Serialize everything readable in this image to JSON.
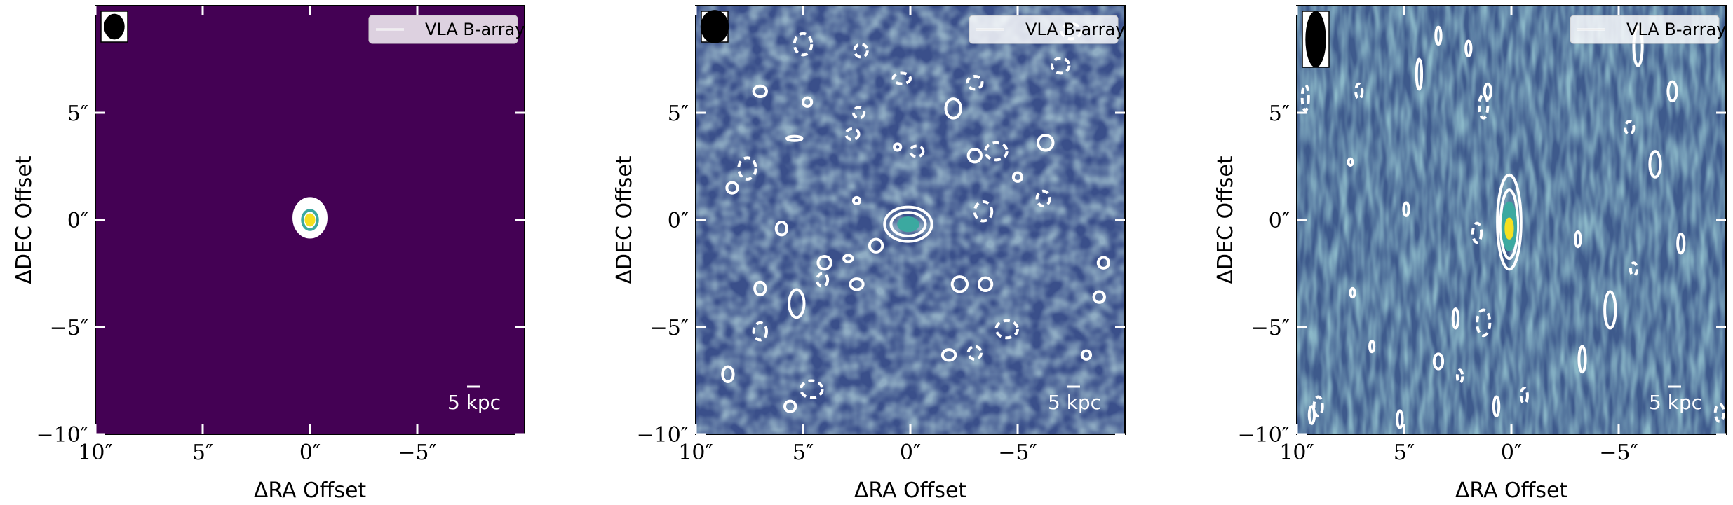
{
  "chart_data": [
    {
      "type": "heatmap",
      "panel": "left",
      "xlabel": "ΔRA Offset",
      "ylabel": "ΔDEC Offset",
      "xlim": [
        10,
        -10
      ],
      "ylim": [
        -10,
        10
      ],
      "x_ticks": [
        {
          "value": 10,
          "label": "10″"
        },
        {
          "value": 5,
          "label": "5″"
        },
        {
          "value": 0,
          "label": "0″"
        },
        {
          "value": -5,
          "label": "−5″"
        }
      ],
      "y_ticks": [
        {
          "value": 5,
          "label": "5″"
        },
        {
          "value": 0,
          "label": "0″"
        },
        {
          "value": -5,
          "label": "−5″"
        },
        {
          "value": -10,
          "label": "−10″"
        }
      ],
      "legend": "VLA B-array",
      "legend_placement": "top-right",
      "scale_bar": "5 kpc",
      "beam": {
        "shape": "round",
        "major_arcsec": 1.0,
        "minor_arcsec": 0.8
      },
      "background_color": "#440154",
      "source": {
        "x": 0,
        "y": 0
      },
      "contours": [
        {
          "x": 0,
          "y": 0.1,
          "rx": 0.75,
          "ry": 0.9,
          "style": "solid",
          "color": "#ffffff",
          "filled": true
        },
        {
          "x": 0,
          "y": 0.0,
          "rx": 0.35,
          "ry": 0.45,
          "style": "solid",
          "color": "#3ba9a0"
        },
        {
          "x": 0,
          "y": 0.0,
          "rx": 0.18,
          "ry": 0.24,
          "style": "solid",
          "color": "#f5e020",
          "filled": true
        }
      ]
    },
    {
      "type": "heatmap",
      "panel": "middle",
      "xlabel": "ΔRA Offset",
      "ylabel": "ΔDEC Offset",
      "xlim": [
        10,
        -10
      ],
      "ylim": [
        -10,
        10
      ],
      "x_ticks": [
        {
          "value": 10,
          "label": "10″"
        },
        {
          "value": 5,
          "label": "5″"
        },
        {
          "value": 0,
          "label": "0″"
        },
        {
          "value": -5,
          "label": "−5″"
        }
      ],
      "y_ticks": [
        {
          "value": 5,
          "label": "5″"
        },
        {
          "value": 0,
          "label": "0″"
        },
        {
          "value": -5,
          "label": "−5″"
        },
        {
          "value": -10,
          "label": "−10″"
        }
      ],
      "legend": "VLA B-array",
      "legend_placement": "top-right",
      "scale_bar": "5 kpc",
      "beam": {
        "shape": "round",
        "major_arcsec": 1.3,
        "minor_arcsec": 1.1
      },
      "background_color": "#3a4f8a",
      "source": {
        "x": 0,
        "y": -0.2
      },
      "contours": [
        {
          "x": 0.1,
          "y": -0.2,
          "rx": 1.1,
          "ry": 0.8,
          "style": "solid",
          "color": "#ffffff"
        },
        {
          "x": 0.1,
          "y": -0.2,
          "rx": 0.8,
          "ry": 0.55,
          "style": "solid",
          "color": "#ffffff"
        },
        {
          "x": 0.1,
          "y": -0.2,
          "rx": 0.45,
          "ry": 0.3,
          "style": "solid",
          "color": "#3ba9a0",
          "filled": true
        },
        {
          "x": 6.0,
          "y": -0.4,
          "rx": 0.25,
          "ry": 0.3,
          "style": "solid",
          "color": "#ffffff"
        },
        {
          "x": 4.0,
          "y": -2.0,
          "rx": 0.3,
          "ry": 0.3,
          "style": "solid",
          "color": "#ffffff"
        },
        {
          "x": 2.5,
          "y": -3.0,
          "rx": 0.3,
          "ry": 0.25,
          "style": "solid",
          "color": "#ffffff"
        },
        {
          "x": 1.6,
          "y": -1.2,
          "rx": 0.3,
          "ry": 0.3,
          "style": "solid",
          "color": "#ffffff"
        },
        {
          "x": 5.3,
          "y": -3.9,
          "rx": 0.35,
          "ry": 0.65,
          "style": "solid",
          "color": "#ffffff"
        },
        {
          "x": 7.0,
          "y": -3.2,
          "rx": 0.25,
          "ry": 0.3,
          "style": "solid",
          "color": "#ffffff"
        },
        {
          "x": 8.3,
          "y": 1.5,
          "rx": 0.25,
          "ry": 0.25,
          "style": "solid",
          "color": "#ffffff"
        },
        {
          "x": 7.0,
          "y": 6.0,
          "rx": 0.3,
          "ry": 0.25,
          "style": "solid",
          "color": "#ffffff"
        },
        {
          "x": 4.8,
          "y": 5.5,
          "rx": 0.2,
          "ry": 0.2,
          "style": "solid",
          "color": "#ffffff"
        },
        {
          "x": 5.4,
          "y": 3.8,
          "rx": 0.35,
          "ry": 0.1,
          "style": "solid",
          "color": "#ffffff"
        },
        {
          "x": -2.0,
          "y": 5.2,
          "rx": 0.35,
          "ry": 0.45,
          "style": "solid",
          "color": "#ffffff"
        },
        {
          "x": -3.0,
          "y": 3.0,
          "rx": 0.3,
          "ry": 0.3,
          "style": "solid",
          "color": "#ffffff"
        },
        {
          "x": -6.3,
          "y": 3.6,
          "rx": 0.35,
          "ry": 0.35,
          "style": "solid",
          "color": "#ffffff"
        },
        {
          "x": -5.0,
          "y": 2.0,
          "rx": 0.2,
          "ry": 0.2,
          "style": "solid",
          "color": "#ffffff"
        },
        {
          "x": -2.3,
          "y": -3.0,
          "rx": 0.35,
          "ry": 0.35,
          "style": "solid",
          "color": "#ffffff"
        },
        {
          "x": -3.5,
          "y": -3.0,
          "rx": 0.3,
          "ry": 0.3,
          "style": "solid",
          "color": "#ffffff"
        },
        {
          "x": -1.8,
          "y": -6.3,
          "rx": 0.3,
          "ry": 0.25,
          "style": "solid",
          "color": "#ffffff"
        },
        {
          "x": -8.8,
          "y": -3.6,
          "rx": 0.25,
          "ry": 0.25,
          "style": "solid",
          "color": "#ffffff"
        },
        {
          "x": -8.2,
          "y": -6.3,
          "rx": 0.2,
          "ry": 0.2,
          "style": "solid",
          "color": "#ffffff"
        },
        {
          "x": -9.0,
          "y": -2.0,
          "rx": 0.25,
          "ry": 0.25,
          "style": "solid",
          "color": "#ffffff"
        },
        {
          "x": 8.5,
          "y": -7.2,
          "rx": 0.25,
          "ry": 0.35,
          "style": "solid",
          "color": "#ffffff"
        },
        {
          "x": 5.6,
          "y": -8.7,
          "rx": 0.25,
          "ry": 0.25,
          "style": "solid",
          "color": "#ffffff"
        },
        {
          "x": 0.6,
          "y": 3.4,
          "rx": 0.15,
          "ry": 0.15,
          "style": "solid",
          "color": "#ffffff"
        },
        {
          "x": 2.5,
          "y": 0.9,
          "rx": 0.15,
          "ry": 0.15,
          "style": "solid",
          "color": "#ffffff"
        },
        {
          "x": 2.9,
          "y": -1.8,
          "rx": 0.2,
          "ry": 0.15,
          "style": "solid",
          "color": "#ffffff"
        },
        {
          "x": -0.3,
          "y": 3.2,
          "rx": 0.3,
          "ry": 0.25,
          "style": "dashed",
          "color": "#ffffff"
        },
        {
          "x": -3.0,
          "y": 6.4,
          "rx": 0.35,
          "ry": 0.3,
          "style": "dashed",
          "color": "#ffffff"
        },
        {
          "x": -7.0,
          "y": 7.2,
          "rx": 0.4,
          "ry": 0.35,
          "style": "dashed",
          "color": "#ffffff"
        },
        {
          "x": -4.0,
          "y": 3.2,
          "rx": 0.5,
          "ry": 0.4,
          "style": "dashed",
          "color": "#ffffff"
        },
        {
          "x": -3.4,
          "y": 0.4,
          "rx": 0.4,
          "ry": 0.45,
          "style": "dashed",
          "color": "#ffffff"
        },
        {
          "x": -6.2,
          "y": 1.0,
          "rx": 0.3,
          "ry": 0.35,
          "style": "dashed",
          "color": "#ffffff"
        },
        {
          "x": -4.5,
          "y": -5.1,
          "rx": 0.5,
          "ry": 0.4,
          "style": "dashed",
          "color": "#ffffff"
        },
        {
          "x": -3.0,
          "y": -6.2,
          "rx": 0.3,
          "ry": 0.3,
          "style": "dashed",
          "color": "#ffffff"
        },
        {
          "x": 4.6,
          "y": -7.9,
          "rx": 0.5,
          "ry": 0.4,
          "style": "dashed",
          "color": "#ffffff"
        },
        {
          "x": 7.0,
          "y": -5.2,
          "rx": 0.3,
          "ry": 0.4,
          "style": "dashed",
          "color": "#ffffff"
        },
        {
          "x": 7.6,
          "y": 2.4,
          "rx": 0.4,
          "ry": 0.5,
          "style": "dashed",
          "color": "#ffffff"
        },
        {
          "x": 5.0,
          "y": 8.2,
          "rx": 0.4,
          "ry": 0.5,
          "style": "dashed",
          "color": "#ffffff"
        },
        {
          "x": 2.3,
          "y": 7.9,
          "rx": 0.3,
          "ry": 0.3,
          "style": "dashed",
          "color": "#ffffff"
        },
        {
          "x": 0.4,
          "y": 6.6,
          "rx": 0.4,
          "ry": 0.25,
          "style": "dashed",
          "color": "#ffffff"
        },
        {
          "x": 2.7,
          "y": 4.0,
          "rx": 0.3,
          "ry": 0.25,
          "style": "dashed",
          "color": "#ffffff"
        },
        {
          "x": -7.5,
          "y": 8.8,
          "rx": 0.45,
          "ry": 0.35,
          "style": "dashed",
          "color": "#ffffff"
        },
        {
          "x": 2.4,
          "y": 5.0,
          "rx": 0.25,
          "ry": 0.25,
          "style": "dashed",
          "color": "#ffffff"
        },
        {
          "x": 4.1,
          "y": -2.8,
          "rx": 0.25,
          "ry": 0.3,
          "style": "dashed",
          "color": "#ffffff"
        }
      ]
    },
    {
      "type": "heatmap",
      "panel": "right",
      "xlabel": "ΔRA Offset",
      "ylabel": "ΔDEC Offset",
      "xlim": [
        10,
        -10
      ],
      "ylim": [
        -10,
        10
      ],
      "x_ticks": [
        {
          "value": 10,
          "label": "10″"
        },
        {
          "value": 5,
          "label": "5″"
        },
        {
          "value": 0,
          "label": "0″"
        },
        {
          "value": -5,
          "label": "−5″"
        }
      ],
      "y_ticks": [
        {
          "value": 5,
          "label": "5″"
        },
        {
          "value": 0,
          "label": "0″"
        },
        {
          "value": -5,
          "label": "−5″"
        },
        {
          "value": -10,
          "label": "−10″"
        }
      ],
      "legend": "VLA B-array",
      "legend_placement": "top-right",
      "scale_bar": "5 kpc",
      "beam": {
        "shape": "elongated",
        "major_arcsec": 2.2,
        "minor_arcsec": 0.8
      },
      "background_color": "#3e5a8c",
      "source": {
        "x": 0,
        "y": -0.4
      },
      "contours": [
        {
          "x": 0.1,
          "y": -0.1,
          "rx": 0.55,
          "ry": 2.2,
          "style": "solid",
          "color": "#ffffff"
        },
        {
          "x": 0.1,
          "y": -0.2,
          "rx": 0.4,
          "ry": 1.6,
          "style": "solid",
          "color": "#ffffff"
        },
        {
          "x": 0.1,
          "y": -0.3,
          "rx": 0.3,
          "ry": 1.1,
          "style": "solid",
          "color": "#3ba9a0",
          "filled": true
        },
        {
          "x": 0.1,
          "y": -0.4,
          "rx": 0.15,
          "ry": 0.45,
          "style": "solid",
          "color": "#f5e020",
          "filled": true
        },
        {
          "x": -4.6,
          "y": -4.2,
          "rx": 0.25,
          "ry": 0.85,
          "style": "solid",
          "color": "#ffffff"
        },
        {
          "x": -6.7,
          "y": 2.6,
          "rx": 0.25,
          "ry": 0.6,
          "style": "solid",
          "color": "#ffffff"
        },
        {
          "x": -7.5,
          "y": 6.0,
          "rx": 0.2,
          "ry": 0.45,
          "style": "solid",
          "color": "#ffffff"
        },
        {
          "x": -5.9,
          "y": 8.1,
          "rx": 0.2,
          "ry": 0.9,
          "style": "solid",
          "color": "#ffffff"
        },
        {
          "x": 4.3,
          "y": 6.8,
          "rx": 0.12,
          "ry": 0.7,
          "style": "solid",
          "color": "#ffffff"
        },
        {
          "x": 1.1,
          "y": 6.0,
          "rx": 0.15,
          "ry": 0.35,
          "style": "solid",
          "color": "#ffffff"
        },
        {
          "x": 2.0,
          "y": 8.0,
          "rx": 0.12,
          "ry": 0.35,
          "style": "solid",
          "color": "#ffffff"
        },
        {
          "x": 3.4,
          "y": 8.6,
          "rx": 0.12,
          "ry": 0.4,
          "style": "solid",
          "color": "#ffffff"
        },
        {
          "x": -7.9,
          "y": -1.1,
          "rx": 0.15,
          "ry": 0.45,
          "style": "solid",
          "color": "#ffffff"
        },
        {
          "x": -3.1,
          "y": -0.9,
          "rx": 0.12,
          "ry": 0.35,
          "style": "solid",
          "color": "#ffffff"
        },
        {
          "x": 2.6,
          "y": -4.6,
          "rx": 0.12,
          "ry": 0.45,
          "style": "solid",
          "color": "#ffffff"
        },
        {
          "x": 3.4,
          "y": -6.6,
          "rx": 0.2,
          "ry": 0.35,
          "style": "solid",
          "color": "#ffffff"
        },
        {
          "x": -3.3,
          "y": -6.5,
          "rx": 0.15,
          "ry": 0.6,
          "style": "solid",
          "color": "#ffffff"
        },
        {
          "x": 0.7,
          "y": -8.7,
          "rx": 0.12,
          "ry": 0.45,
          "style": "solid",
          "color": "#ffffff"
        },
        {
          "x": 9.3,
          "y": -9.1,
          "rx": 0.12,
          "ry": 0.4,
          "style": "solid",
          "color": "#ffffff"
        },
        {
          "x": 5.2,
          "y": -9.3,
          "rx": 0.12,
          "ry": 0.4,
          "style": "solid",
          "color": "#ffffff"
        },
        {
          "x": 6.5,
          "y": -5.9,
          "rx": 0.1,
          "ry": 0.25,
          "style": "solid",
          "color": "#ffffff"
        },
        {
          "x": 4.9,
          "y": 0.5,
          "rx": 0.12,
          "ry": 0.3,
          "style": "solid",
          "color": "#ffffff"
        },
        {
          "x": 7.4,
          "y": -3.4,
          "rx": 0.1,
          "ry": 0.2,
          "style": "solid",
          "color": "#ffffff"
        },
        {
          "x": 7.5,
          "y": 2.7,
          "rx": 0.1,
          "ry": 0.15,
          "style": "solid",
          "color": "#ffffff"
        },
        {
          "x": 1.6,
          "y": -0.6,
          "rx": 0.2,
          "ry": 0.45,
          "style": "dashed",
          "color": "#ffffff"
        },
        {
          "x": 1.3,
          "y": 5.3,
          "rx": 0.2,
          "ry": 0.55,
          "style": "dashed",
          "color": "#ffffff"
        },
        {
          "x": 7.1,
          "y": 6.0,
          "rx": 0.15,
          "ry": 0.35,
          "style": "dashed",
          "color": "#ffffff"
        },
        {
          "x": 9.6,
          "y": 5.7,
          "rx": 0.15,
          "ry": 0.6,
          "style": "dashed",
          "color": "#ffffff"
        },
        {
          "x": 1.3,
          "y": -4.8,
          "rx": 0.3,
          "ry": 0.6,
          "style": "dashed",
          "color": "#ffffff"
        },
        {
          "x": 2.4,
          "y": -7.3,
          "rx": 0.12,
          "ry": 0.3,
          "style": "dashed",
          "color": "#ffffff"
        },
        {
          "x": -0.6,
          "y": -8.2,
          "rx": 0.15,
          "ry": 0.35,
          "style": "dashed",
          "color": "#ffffff"
        },
        {
          "x": -5.5,
          "y": 4.3,
          "rx": 0.2,
          "ry": 0.3,
          "style": "dashed",
          "color": "#ffffff"
        },
        {
          "x": -5.7,
          "y": -2.3,
          "rx": 0.15,
          "ry": 0.3,
          "style": "dashed",
          "color": "#ffffff"
        },
        {
          "x": 9.0,
          "y": -8.7,
          "rx": 0.2,
          "ry": 0.45,
          "style": "dashed",
          "color": "#ffffff"
        },
        {
          "x": -9.7,
          "y": -9.0,
          "rx": 0.2,
          "ry": 0.4,
          "style": "dashed",
          "color": "#ffffff"
        }
      ]
    }
  ]
}
